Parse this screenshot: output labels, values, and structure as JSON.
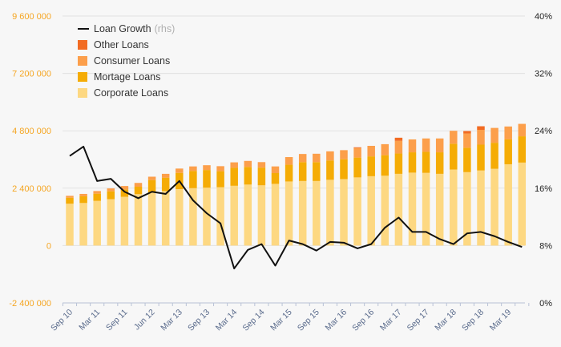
{
  "chart_data": {
    "type": "bar",
    "stacked": true,
    "left_axis": {
      "ylim": [
        -2400000,
        9600000
      ],
      "ticks": [
        "-2 400 000",
        "0",
        "2 400 000",
        "4 800 000",
        "7 200 000",
        "9 600 000"
      ],
      "tick_values": [
        -2400000,
        0,
        2400000,
        4800000,
        7200000,
        9600000
      ],
      "color": "#f5a623"
    },
    "right_axis": {
      "ylim": [
        0,
        40
      ],
      "ticks": [
        "0%",
        "8%",
        "16%",
        "24%",
        "32%",
        "40%"
      ],
      "tick_values": [
        0,
        8,
        16,
        24,
        32,
        40
      ],
      "color": "#222222"
    },
    "x_tick_labels": [
      "Sep 10",
      "Mar 11",
      "Sep 11",
      "Jun 12",
      "Mar 13",
      "Sep 13",
      "Mar 14",
      "Sep 14",
      "Mar 15",
      "Sep 15",
      "Mar 16",
      "Sep 16",
      "Mar 17",
      "Sep 17",
      "Mar 18",
      "Sep 18",
      "Mar 19"
    ],
    "x_tick_positions": [
      0,
      2,
      4,
      6,
      8,
      10,
      12,
      14,
      16,
      18,
      20,
      22,
      24,
      26,
      28,
      30,
      32
    ],
    "periods": 34,
    "grid": true,
    "legend_position": "top-left",
    "series": [
      {
        "name": "Corporate Loans",
        "color": "#fdd882",
        "values": [
          1750000,
          1780000,
          1870000,
          1940000,
          2040000,
          2150000,
          2220000,
          2280000,
          2360000,
          2400000,
          2420000,
          2440000,
          2500000,
          2550000,
          2520000,
          2580000,
          2680000,
          2700000,
          2700000,
          2750000,
          2780000,
          2850000,
          2900000,
          2920000,
          3000000,
          3050000,
          3040000,
          3000000,
          3180000,
          3070000,
          3140000,
          3210000,
          3400000,
          3470000
        ]
      },
      {
        "name": "Mortage Loans",
        "color": "#f5ac05",
        "values": [
          250000,
          280000,
          300000,
          330000,
          310000,
          310000,
          520000,
          560000,
          680000,
          720000,
          740000,
          670000,
          750000,
          740000,
          740000,
          450000,
          700000,
          790000,
          790000,
          810000,
          830000,
          830000,
          830000,
          860000,
          850000,
          850000,
          880000,
          900000,
          1080000,
          1020000,
          1080000,
          1090000,
          1040000,
          1100000
        ]
      },
      {
        "name": "Consumer Loans",
        "color": "#fc9f4b",
        "values": [
          80000,
          100000,
          110000,
          120000,
          140000,
          160000,
          140000,
          160000,
          180000,
          190000,
          200000,
          210000,
          230000,
          250000,
          230000,
          280000,
          320000,
          340000,
          350000,
          380000,
          380000,
          400000,
          440000,
          460000,
          530000,
          540000,
          560000,
          580000,
          540000,
          600000,
          620000,
          620000,
          540000,
          520000
        ]
      },
      {
        "name": "Other Loans",
        "color": "#f26b22",
        "values": [
          0,
          0,
          0,
          0,
          0,
          0,
          0,
          0,
          0,
          0,
          0,
          0,
          0,
          0,
          0,
          0,
          0,
          0,
          0,
          0,
          0,
          30000,
          0,
          0,
          130000,
          0,
          0,
          0,
          0,
          100000,
          150000,
          0,
          0,
          0
        ]
      }
    ],
    "line": {
      "name": "Loan Growth",
      "axis_note": "(rhs)",
      "color": "#111111",
      "values": [
        20.5,
        21.8,
        17.0,
        17.3,
        15.5,
        14.6,
        15.5,
        15.2,
        17.0,
        14.3,
        12.5,
        11.1,
        4.8,
        7.4,
        8.2,
        5.2,
        8.7,
        8.2,
        7.3,
        8.5,
        8.4,
        7.6,
        8.2,
        10.5,
        11.9,
        9.9,
        9.9,
        8.9,
        8.2,
        9.7,
        9.9,
        9.3,
        8.5,
        7.8
      ]
    }
  }
}
